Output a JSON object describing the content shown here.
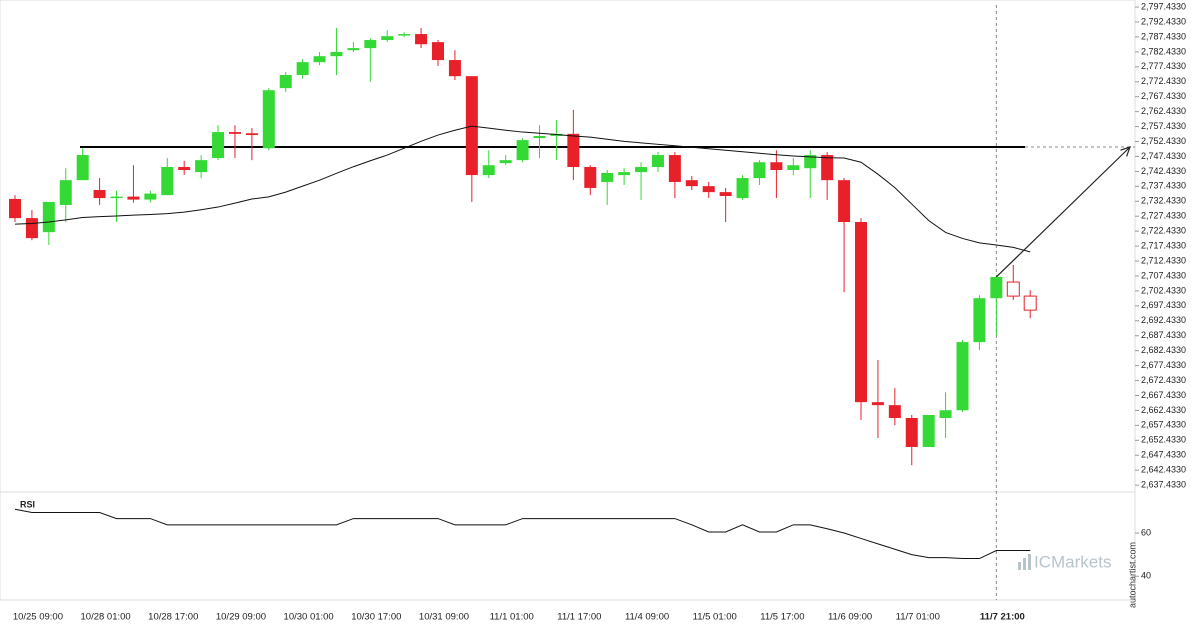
{
  "chart_data": {
    "type": "candlestick",
    "categories": [
      null,
      "10/25 09:00",
      null,
      null,
      null,
      "10/28 01:00",
      null,
      null,
      null,
      "10/28 17:00",
      null,
      null,
      null,
      "10/29 09:00",
      null,
      null,
      null,
      "10/30 01:00",
      null,
      null,
      null,
      "10/30 17:00",
      null,
      null,
      null,
      "10/31 09:00",
      null,
      null,
      null,
      "11/1 01:00",
      null,
      null,
      null,
      "11/1 17:00",
      null,
      null,
      null,
      "11/4 09:00",
      null,
      null,
      null,
      "11/5 01:00",
      null,
      null,
      null,
      "11/5 17:00",
      null,
      null,
      null,
      "11/6 09:00",
      null,
      null,
      null,
      "11/7 01:00",
      null,
      null,
      null,
      null,
      "11/7 21:00",
      null,
      null
    ],
    "open": [
      2733.2,
      2726.8,
      2722.1,
      2731.2,
      2739.5,
      2736.2,
      2733.5,
      2734,
      2733,
      2734.5,
      2743.9,
      2742.2,
      2746.9,
      2755.6,
      2755.2,
      2750.2,
      2770.3,
      2774.7,
      2779,
      2781,
      2783,
      2783.7,
      2786.4,
      2788,
      2788.4,
      2785.7,
      2779.7,
      2774.3,
      2741.2,
      2745.2,
      2746.2,
      2753.6,
      2754.3,
      2755,
      2743.9,
      2738.9,
      2741.2,
      2742.2,
      2743.9,
      2747.9,
      2739.5,
      2737.5,
      2735.5,
      2733.5,
      2740.2,
      2745.5,
      2742.9,
      2743.5,
      2747.9,
      2739.5,
      2725.5,
      2665.2,
      2664.2,
      2659.9,
      2650.2,
      2659.9,
      2662.5,
      2685.3,
      2700,
      2705.4,
      2700.7
    ],
    "high": [
      2734.5,
      2729.5,
      2732.2,
      2743.5,
      2750.2,
      2740.2,
      2736,
      2744.5,
      2736,
      2746.9,
      2746,
      2747.9,
      2757.9,
      2757.9,
      2756.9,
      2770.3,
      2775.7,
      2780,
      2782.4,
      2790.4,
      2785.7,
      2787,
      2789.7,
      2789,
      2790.4,
      2786.4,
      2783,
      2774.3,
      2749.5,
      2747.9,
      2753.6,
      2757.9,
      2759.6,
      2763,
      2744.5,
      2742.9,
      2743.5,
      2745.5,
      2748.9,
      2748.9,
      2740.9,
      2738.9,
      2736.9,
      2741.2,
      2746.2,
      2749.5,
      2746.9,
      2749.5,
      2748.9,
      2740.2,
      2726.8,
      2679.3,
      2669.9,
      2660.9,
      2660.9,
      2668.5,
      2686,
      2701,
      2707.7,
      2711.1,
      2702.7
    ],
    "low": [
      2725.5,
      2719.4,
      2717.8,
      2725.5,
      2739.5,
      2731.2,
      2725.5,
      2732,
      2732,
      2734.5,
      2741.2,
      2740.2,
      2746.2,
      2746.9,
      2746.2,
      2749.5,
      2769,
      2773.5,
      2778,
      2774.7,
      2782.4,
      2772.4,
      2785.7,
      2787.4,
      2783.7,
      2777.7,
      2773,
      2732.2,
      2740.2,
      2744.5,
      2745.5,
      2746.9,
      2746.2,
      2739.5,
      2734.5,
      2731.2,
      2737.9,
      2732.9,
      2742.2,
      2733.5,
      2736.2,
      2733.5,
      2725.5,
      2732.9,
      2737.9,
      2733.5,
      2741.2,
      2733.5,
      2732.9,
      2702,
      2659.2,
      2653.2,
      2657.5,
      2644.1,
      2650.2,
      2653.2,
      2661.9,
      2682.6,
      2687.6,
      2699.4,
      2693.3
    ],
    "close": [
      2726.8,
      2720.1,
      2732.2,
      2739.5,
      2747.9,
      2733.5,
      2734,
      2733,
      2735,
      2743.9,
      2742.9,
      2746.2,
      2755.6,
      2755,
      2754.6,
      2769.6,
      2774.7,
      2779,
      2781,
      2782.4,
      2783.7,
      2786.4,
      2787.7,
      2788.4,
      2785,
      2779.7,
      2774.3,
      2741.2,
      2744.5,
      2746.2,
      2752.9,
      2754.3,
      2755,
      2743.9,
      2736.9,
      2741.9,
      2742.2,
      2743.9,
      2747.9,
      2738.9,
      2737.5,
      2735.5,
      2734.2,
      2740.2,
      2745.5,
      2742.9,
      2744.5,
      2747.9,
      2739.5,
      2725.5,
      2665.2,
      2664.2,
      2659.9,
      2650.2,
      2660.9,
      2662.5,
      2685.3,
      2700,
      2707.1,
      2700.7,
      2696
    ],
    "colors": {
      "up": "#35d935",
      "down": "#e8202a"
    },
    "hollow_count": 2,
    "ylim": [
      2635.8,
      2799.8
    ],
    "yticks": [
      {
        "value": 2797.433,
        "label": "2,797.4330"
      },
      {
        "value": 2792.433,
        "label": "2,792.4330"
      },
      {
        "value": 2787.433,
        "label": "2,787.4330"
      },
      {
        "value": 2782.433,
        "label": "2,782.4330"
      },
      {
        "value": 2777.433,
        "label": "2,777.4330"
      },
      {
        "value": 2772.433,
        "label": "2,772.4330"
      },
      {
        "value": 2767.433,
        "label": "2,767.4330"
      },
      {
        "value": 2762.433,
        "label": "2,762.4330"
      },
      {
        "value": 2757.433,
        "label": "2,757.4330"
      },
      {
        "value": 2752.433,
        "label": "2,752.4330"
      },
      {
        "value": 2747.433,
        "label": "2,747.4330"
      },
      {
        "value": 2742.433,
        "label": "2,742.4330"
      },
      {
        "value": 2737.433,
        "label": "2,737.4330"
      },
      {
        "value": 2732.433,
        "label": "2,732.4330"
      },
      {
        "value": 2727.433,
        "label": "2,727.4330"
      },
      {
        "value": 2722.433,
        "label": "2,722.4330"
      },
      {
        "value": 2717.433,
        "label": "2,717.4330"
      },
      {
        "value": 2712.433,
        "label": "2,712.4330"
      },
      {
        "value": 2707.433,
        "label": "2,707.4330"
      },
      {
        "value": 2702.433,
        "label": "2,702.4330"
      },
      {
        "value": 2697.433,
        "label": "2,697.4330"
      },
      {
        "value": 2692.433,
        "label": "2,692.4330"
      },
      {
        "value": 2687.433,
        "label": "2,687.4330"
      },
      {
        "value": 2682.433,
        "label": "2,682.4330"
      },
      {
        "value": 2677.433,
        "label": "2,677.4330"
      },
      {
        "value": 2672.433,
        "label": "2,672.4330"
      },
      {
        "value": 2667.433,
        "label": "2,667.4330"
      },
      {
        "value": 2662.433,
        "label": "2,662.4330"
      },
      {
        "value": 2657.433,
        "label": "2,657.4330"
      },
      {
        "value": 2652.433,
        "label": "2,652.4330"
      },
      {
        "value": 2647.433,
        "label": "2,647.4330"
      },
      {
        "value": 2642.433,
        "label": "2,642.4330"
      },
      {
        "value": 2637.433,
        "label": "2,637.4330"
      }
    ],
    "moving_average": {
      "color": "#111111",
      "values": [
        2724.8,
        2725,
        2725.5,
        2726.2,
        2727,
        2727.3,
        2727.5,
        2727.8,
        2728,
        2728.3,
        2728.8,
        2729.6,
        2730.5,
        2731.8,
        2733.2,
        2733.9,
        2735.5,
        2737.5,
        2739.5,
        2741.8,
        2744,
        2746,
        2747.9,
        2750.2,
        2752.5,
        2754.6,
        2756.2,
        2757.6,
        2756.9,
        2756.2,
        2755.6,
        2755.2,
        2754.8,
        2754.3,
        2753.9,
        2753.2,
        2752.5,
        2752,
        2751.5,
        2751,
        2750.5,
        2750,
        2749.5,
        2749,
        2748.5,
        2748,
        2747.6,
        2747.3,
        2747,
        2746.9,
        2745.5,
        2741.5,
        2737,
        2731.5,
        2726,
        2722,
        2720,
        2718.5,
        2717.8,
        2717,
        2715.5
      ]
    },
    "level": 2750.6,
    "rsi": {
      "label": "RSI",
      "ylim": [
        29,
        79
      ],
      "yticks": [
        60,
        40
      ],
      "values": [
        71,
        69.5,
        69.5,
        69.5,
        69.5,
        69.5,
        66.7,
        66.7,
        66.7,
        63.8,
        63.8,
        63.8,
        63.8,
        63.8,
        63.8,
        63.8,
        63.8,
        63.8,
        63.8,
        63.8,
        66.7,
        66.7,
        66.7,
        66.7,
        66.7,
        66.7,
        63.8,
        63.8,
        63.8,
        63.8,
        66.7,
        66.7,
        66.7,
        66.7,
        66.7,
        66.7,
        66.7,
        66.7,
        66.7,
        66.7,
        63.8,
        60.5,
        60.5,
        63.8,
        60.5,
        60.5,
        63.8,
        63.8,
        62,
        60,
        57.5,
        55,
        52.5,
        50,
        48.6,
        48.6,
        48.2,
        48.2,
        51.9,
        51.9,
        51.9
      ]
    },
    "watermark": "ICMarkets",
    "credit": "autochartist.com"
  }
}
